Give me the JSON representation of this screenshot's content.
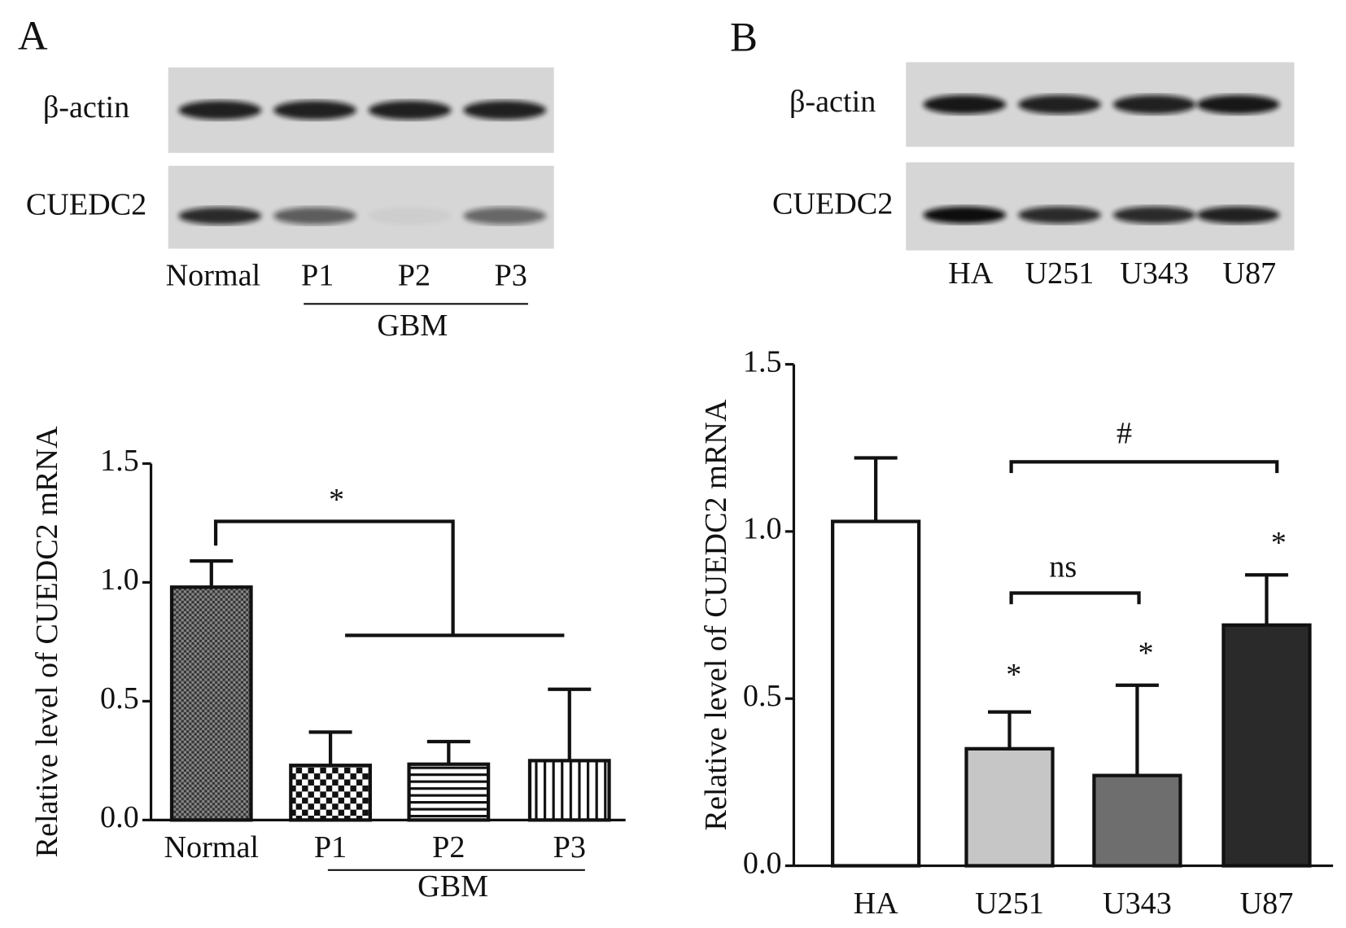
{
  "chart_data": [
    {
      "type": "bar",
      "panel": "A",
      "blot": {
        "rows": [
          "β-actin",
          "CUEDC2"
        ],
        "lanes": [
          "Normal",
          "P1",
          "P2",
          "P3"
        ],
        "group_label": "GBM"
      },
      "ylabel": "Relative level of CUEDC2 mRNA",
      "categories": [
        "Normal",
        "P1",
        "P2",
        "P3"
      ],
      "group_label": "GBM",
      "values": [
        0.98,
        0.23,
        0.235,
        0.25
      ],
      "errors": [
        0.11,
        0.14,
        0.095,
        0.3
      ],
      "patterns": [
        "fine-checker",
        "checker",
        "hlines",
        "vlines"
      ],
      "ylim": [
        0,
        1.5
      ],
      "yticks": [
        {
          "value": 0,
          "label": "0.0"
        },
        {
          "value": 0.5,
          "label": "0.5"
        },
        {
          "value": 1,
          "label": "1.0"
        },
        {
          "value": 1.5,
          "label": "1.5"
        }
      ],
      "annotations": [
        "*"
      ]
    },
    {
      "type": "bar",
      "panel": "B",
      "blot": {
        "rows": [
          "β-actin",
          "CUEDC2"
        ],
        "lanes": [
          "HA",
          "U251",
          "U343",
          "U87"
        ]
      },
      "ylabel": "Relative level of CUEDC2 mRNA",
      "categories": [
        "HA",
        "U251",
        "U343",
        "U87"
      ],
      "values": [
        1.03,
        0.35,
        0.27,
        0.72
      ],
      "errors": [
        0.19,
        0.11,
        0.27,
        0.15
      ],
      "colors": [
        "#ffffff",
        "#c6c6c6",
        "#6e6e6e",
        "#2a2a2a"
      ],
      "ylim": [
        0,
        1.5
      ],
      "yticks": [
        {
          "value": 0,
          "label": "0.0"
        },
        {
          "value": 0.5,
          "label": "0.5"
        },
        {
          "value": 1,
          "label": "1.0"
        },
        {
          "value": 1.5,
          "label": "1.5"
        }
      ],
      "annotations": [
        "*",
        "*",
        "*",
        "ns",
        "#"
      ]
    }
  ]
}
